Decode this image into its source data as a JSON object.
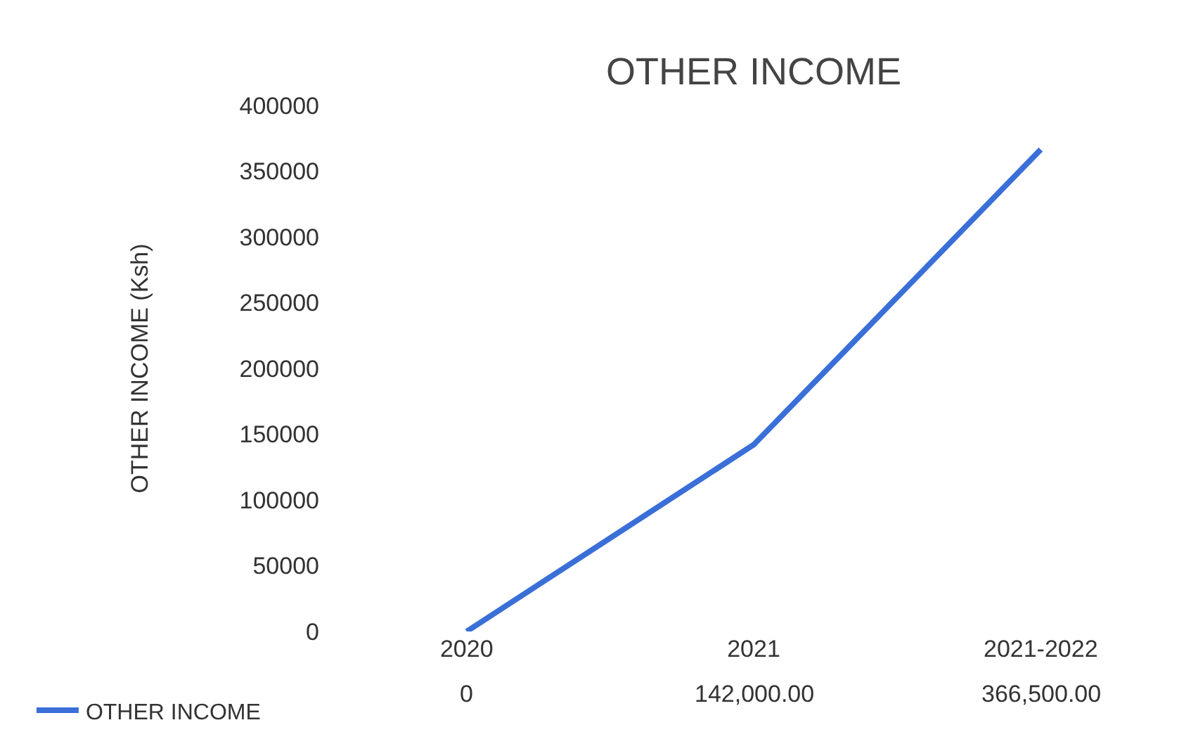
{
  "chart_data": {
    "type": "line",
    "title": "OTHER INCOME",
    "ylabel": "OTHER INCOME (Ksh)",
    "categories": [
      "2020",
      "2021",
      "2021-2022"
    ],
    "series": [
      {
        "name": "OTHER INCOME",
        "color": "#3a6fd8",
        "values": [
          0,
          142000,
          366500
        ],
        "value_labels": [
          "0",
          "142,000.00",
          "366,500.00"
        ]
      }
    ],
    "ylim": [
      0,
      400000
    ],
    "yticks": [
      0,
      50000,
      100000,
      150000,
      200000,
      250000,
      300000,
      350000,
      400000
    ],
    "legend": "bottom left",
    "marker": "none",
    "line_style": "solid"
  }
}
